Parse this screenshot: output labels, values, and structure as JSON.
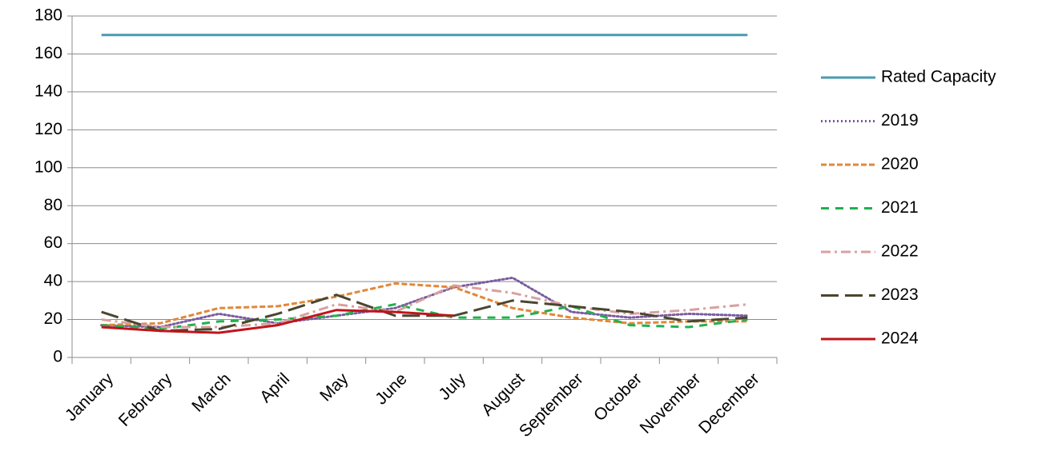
{
  "chart_data": {
    "type": "line",
    "categories": [
      "January",
      "February",
      "March",
      "April",
      "May",
      "June",
      "July",
      "August",
      "September",
      "October",
      "November",
      "December"
    ],
    "series": [
      {
        "name": "Rated Capacity",
        "color": "#4a9bb0",
        "dash": "solid",
        "values": [
          170,
          170,
          170,
          170,
          170,
          170,
          170,
          170,
          170,
          170,
          170,
          170
        ]
      },
      {
        "name": "2019",
        "color": "#7a5c9e",
        "dash": "dotted",
        "values": [
          17,
          16,
          23,
          18,
          22,
          26,
          37,
          42,
          24,
          21,
          23,
          22
        ]
      },
      {
        "name": "2020",
        "color": "#e0883a",
        "dash": "dashed",
        "values": [
          17,
          18,
          26,
          27,
          32,
          39,
          37,
          26,
          21,
          18,
          19,
          19
        ]
      },
      {
        "name": "2021",
        "color": "#22b04c",
        "dash": "long-dashed",
        "values": [
          17,
          15,
          19,
          20,
          22,
          28,
          21,
          21,
          27,
          17,
          16,
          20
        ]
      },
      {
        "name": "2022",
        "color": "#d9a0a0",
        "dash": "dash-dot",
        "values": [
          20,
          16,
          16,
          18,
          28,
          24,
          38,
          34,
          27,
          23,
          25,
          28
        ]
      },
      {
        "name": "2023",
        "color": "#4a4630",
        "dash": "extra-long-dashed",
        "values": [
          24,
          14,
          15,
          23,
          33,
          22,
          22,
          30,
          27,
          24,
          19,
          21
        ]
      },
      {
        "name": "2024",
        "color": "#c0141c",
        "dash": "solid",
        "values": [
          16,
          14,
          13,
          17,
          25,
          24,
          22,
          null,
          null,
          null,
          null,
          null
        ]
      }
    ],
    "ylim": [
      0,
      180
    ],
    "yticks": [
      0,
      20,
      40,
      60,
      80,
      100,
      120,
      140,
      160,
      180
    ],
    "grid": true,
    "legend": "right"
  }
}
